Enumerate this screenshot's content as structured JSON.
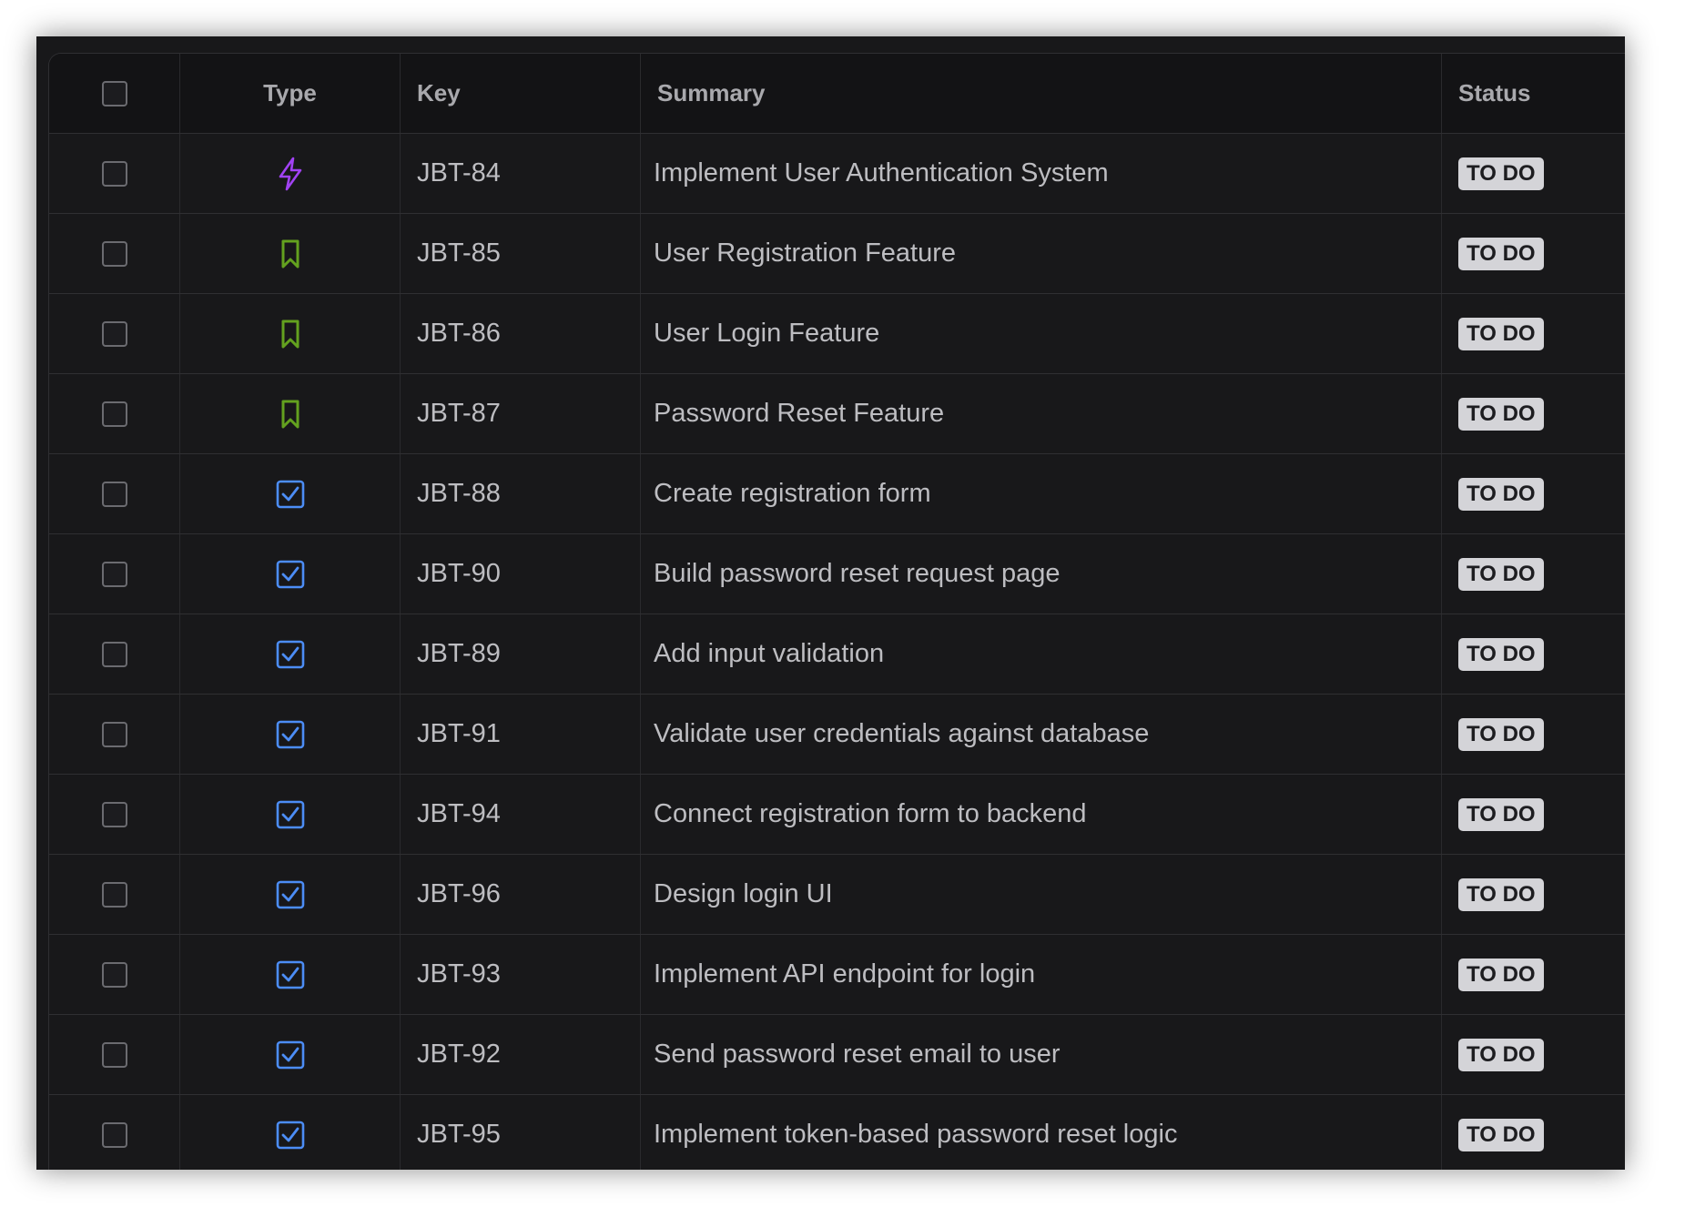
{
  "columns": {
    "type": "Type",
    "key": "Key",
    "summary": "Summary",
    "status": "Status"
  },
  "colors": {
    "epic": "#a142f4",
    "story": "#63a11f",
    "task": "#4c8df6",
    "badge_bg": "#d4d4d8"
  },
  "rows": [
    {
      "type": "epic",
      "icon": "lightning-icon",
      "key": "JBT-84",
      "summary": "Implement User Authentication System",
      "status": "TO DO"
    },
    {
      "type": "story",
      "icon": "bookmark-icon",
      "key": "JBT-85",
      "summary": "User Registration Feature",
      "status": "TO DO"
    },
    {
      "type": "story",
      "icon": "bookmark-icon",
      "key": "JBT-86",
      "summary": "User Login Feature",
      "status": "TO DO"
    },
    {
      "type": "story",
      "icon": "bookmark-icon",
      "key": "JBT-87",
      "summary": "Password Reset Feature",
      "status": "TO DO"
    },
    {
      "type": "task",
      "icon": "checkbox-task-icon",
      "key": "JBT-88",
      "summary": "Create registration form",
      "status": "TO DO"
    },
    {
      "type": "task",
      "icon": "checkbox-task-icon",
      "key": "JBT-90",
      "summary": "Build password reset request page",
      "status": "TO DO"
    },
    {
      "type": "task",
      "icon": "checkbox-task-icon",
      "key": "JBT-89",
      "summary": "Add input validation",
      "status": "TO DO"
    },
    {
      "type": "task",
      "icon": "checkbox-task-icon",
      "key": "JBT-91",
      "summary": "Validate user credentials against database",
      "status": "TO DO"
    },
    {
      "type": "task",
      "icon": "checkbox-task-icon",
      "key": "JBT-94",
      "summary": "Connect registration form to backend",
      "status": "TO DO"
    },
    {
      "type": "task",
      "icon": "checkbox-task-icon",
      "key": "JBT-96",
      "summary": "Design login UI",
      "status": "TO DO"
    },
    {
      "type": "task",
      "icon": "checkbox-task-icon",
      "key": "JBT-93",
      "summary": "Implement API endpoint for login",
      "status": "TO DO"
    },
    {
      "type": "task",
      "icon": "checkbox-task-icon",
      "key": "JBT-92",
      "summary": "Send password reset email to user",
      "status": "TO DO"
    },
    {
      "type": "task",
      "icon": "checkbox-task-icon",
      "key": "JBT-95",
      "summary": "Implement token-based password reset logic",
      "status": "TO DO"
    }
  ]
}
